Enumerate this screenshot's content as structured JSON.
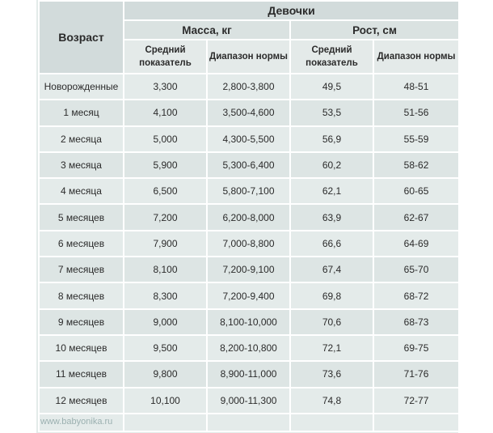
{
  "table": {
    "title": "Девочки",
    "age_header": "Возраст",
    "mass_header": "Масса, кг",
    "height_header": "Рост, см",
    "sub_headers": {
      "mass_avg": "Средний показатель",
      "mass_range": "Диапазон нормы",
      "height_avg": "Средний показатель",
      "height_range": "Диапазон нормы"
    },
    "rows": [
      {
        "age": "Новорожденные",
        "mass_avg": "3,300",
        "mass_range": "2,800-3,800",
        "height_avg": "49,5",
        "height_range": "48-51"
      },
      {
        "age": "1 месяц",
        "mass_avg": "4,100",
        "mass_range": "3,500-4,600",
        "height_avg": "53,5",
        "height_range": "51-56"
      },
      {
        "age": "2 месяца",
        "mass_avg": "5,000",
        "mass_range": "4,300-5,500",
        "height_avg": "56,9",
        "height_range": "55-59"
      },
      {
        "age": "3 месяца",
        "mass_avg": "5,900",
        "mass_range": "5,300-6,400",
        "height_avg": "60,2",
        "height_range": "58-62"
      },
      {
        "age": "4 месяца",
        "mass_avg": "6,500",
        "mass_range": "5,800-7,100",
        "height_avg": "62,1",
        "height_range": "60-65"
      },
      {
        "age": "5 месяцев",
        "mass_avg": "7,200",
        "mass_range": "6,200-8,000",
        "height_avg": "63,9",
        "height_range": "62-67"
      },
      {
        "age": "6 месяцев",
        "mass_avg": "7,900",
        "mass_range": "7,000-8,800",
        "height_avg": "66,6",
        "height_range": "64-69"
      },
      {
        "age": "7 месяцев",
        "mass_avg": "8,100",
        "mass_range": "7,200-9,100",
        "height_avg": "67,4",
        "height_range": "65-70"
      },
      {
        "age": "8 месяцев",
        "mass_avg": "8,300",
        "mass_range": "7,200-9,400",
        "height_avg": "69,8",
        "height_range": "68-72"
      },
      {
        "age": "9 месяцев",
        "mass_avg": "9,000",
        "mass_range": "8,100-10,000",
        "height_avg": "70,6",
        "height_range": "68-73"
      },
      {
        "age": "10 месяцев",
        "mass_avg": "9,500",
        "mass_range": "8,200-10,800",
        "height_avg": "72,1",
        "height_range": "69-75"
      },
      {
        "age": "11 месяцев",
        "mass_avg": "9,800",
        "mass_range": "8,900-11,000",
        "height_avg": "73,6",
        "height_range": "71-76"
      },
      {
        "age": "12 месяцев",
        "mass_avg": "10,100",
        "mass_range": "9,000-11,300",
        "height_avg": "74,8",
        "height_range": "72-77"
      }
    ]
  },
  "watermark": "www.babyonika.ru",
  "colors": {
    "header_bg": "#d2dbdb",
    "cell_bg": "#e4ebea",
    "border": "#ffffff",
    "text": "#2b2b2b"
  }
}
